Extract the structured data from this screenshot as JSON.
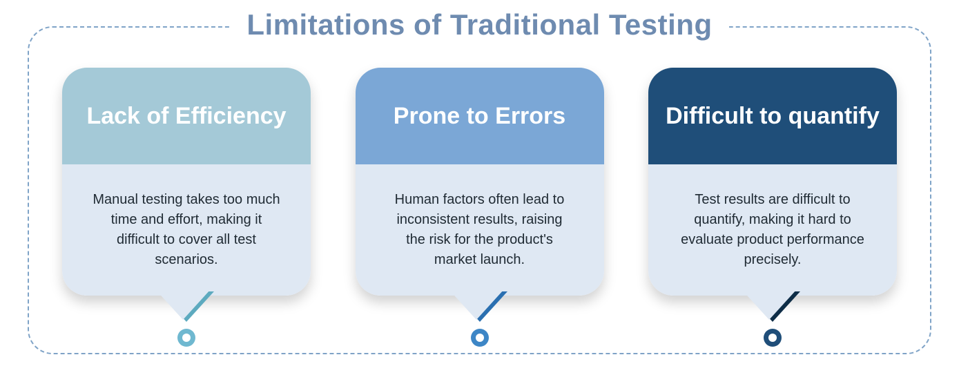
{
  "title": "Limitations of Traditional Testing",
  "title_color": "#6e8bb0",
  "frame_border_color": "#7fa3c7",
  "background_color": "#ffffff",
  "body_bg": "#dfe8f3",
  "body_text_color": "#1f2a33",
  "card_border_radius": 36,
  "title_fontsize": 42,
  "head_fontsize": 34,
  "body_fontsize": 20,
  "cards": [
    {
      "head": "Lack of Efficiency",
      "body": "Manual testing takes too much time and effort, making it difficult to cover all test scenarios.",
      "head_bg": "#a4c9d7",
      "accent": "#5daabf",
      "dot_ring": "#6fb8d0"
    },
    {
      "head": "Prone to Errors",
      "body": "Human factors often lead to inconsistent results, raising the risk for the product's market launch.",
      "head_bg": "#7ba7d6",
      "accent": "#2a6fb0",
      "dot_ring": "#3d86c6"
    },
    {
      "head": "Difficult to quantify",
      "body": "Test results are difficult to quantify, making it hard to evaluate product performance precisely.",
      "head_bg": "#1f4e79",
      "accent": "#0e2d47",
      "dot_ring": "#1f4e79"
    }
  ]
}
